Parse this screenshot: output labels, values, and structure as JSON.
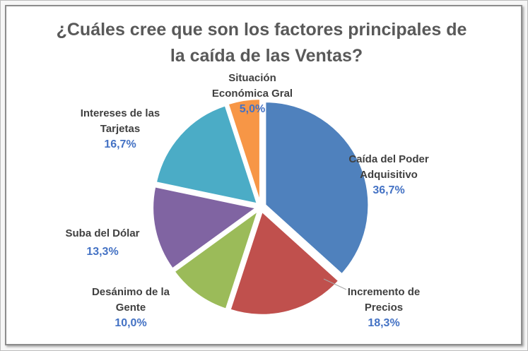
{
  "chart_data": {
    "type": "pie",
    "title": [
      "¿Cuáles cree que son los factores principales de",
      "la caída de las Ventas?"
    ],
    "slices": [
      {
        "label": [
          "Caída del Poder",
          "Adquisitivo"
        ],
        "value": 36.7,
        "display": "36,7%",
        "color": "#4f81bd"
      },
      {
        "label": [
          "Incremento de",
          "Precios"
        ],
        "value": 18.3,
        "display": "18,3%",
        "color": "#c0504d"
      },
      {
        "label": [
          "Desánimo de la",
          "Gente"
        ],
        "value": 10.0,
        "display": "10,0%",
        "color": "#9bbb59"
      },
      {
        "label": [
          "Suba del Dólar"
        ],
        "value": 13.3,
        "display": "13,3%",
        "color": "#8064a2"
      },
      {
        "label": [
          "Intereses de las",
          "Tarjetas"
        ],
        "value": 16.7,
        "display": "16,7%",
        "color": "#4bacc6"
      },
      {
        "label": [
          "Situación",
          "Económica Gral"
        ],
        "value": 5.0,
        "display": "5,0%",
        "color": "#f79646"
      }
    ]
  }
}
